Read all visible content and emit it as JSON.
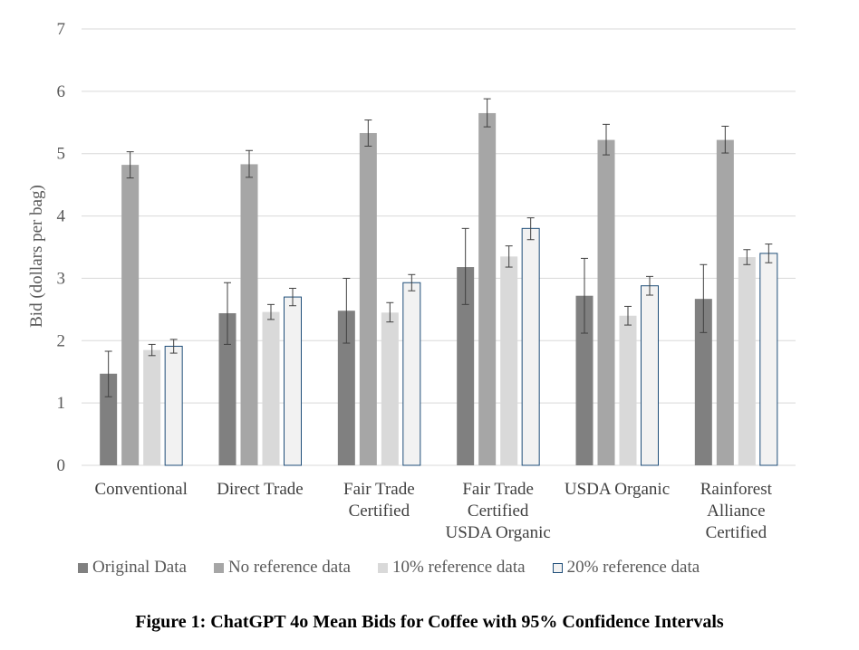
{
  "caption": "Figure 1: ChatGPT 4o Mean Bids for Coffee with 95% Confidence Intervals",
  "chart_data": {
    "type": "bar",
    "title": "",
    "xlabel": "",
    "ylabel": "Bid (dollars per bag)",
    "ylim": [
      0,
      7
    ],
    "yticks": [
      "0",
      "1",
      "2",
      "3",
      "4",
      "5",
      "6",
      "7"
    ],
    "grid": true,
    "legend_position": "bottom",
    "categories": [
      [
        "Conventional"
      ],
      [
        "Direct Trade"
      ],
      [
        "Fair Trade",
        "Certified"
      ],
      [
        "Fair Trade",
        "Certified",
        "USDA Organic"
      ],
      [
        "USDA Organic"
      ],
      [
        "Rainforest",
        "Alliance",
        "Certified"
      ]
    ],
    "series": [
      {
        "name": "Original Data",
        "color": "#808080",
        "stroke": "#808080",
        "values": [
          1.47,
          2.44,
          2.48,
          3.18,
          2.72,
          2.67
        ],
        "ci_low": [
          1.1,
          1.94,
          1.96,
          2.58,
          2.12,
          2.13
        ],
        "ci_high": [
          1.83,
          2.93,
          3.0,
          3.8,
          3.32,
          3.22
        ]
      },
      {
        "name": "No reference data",
        "color": "#a6a6a6",
        "stroke": "#a6a6a6",
        "values": [
          4.82,
          4.83,
          5.33,
          5.65,
          5.22,
          5.22
        ],
        "ci_low": [
          4.61,
          4.62,
          5.12,
          5.43,
          4.98,
          5.01
        ],
        "ci_high": [
          5.03,
          5.05,
          5.54,
          5.88,
          5.47,
          5.44
        ]
      },
      {
        "name": "10% reference data",
        "color": "#d9d9d9",
        "stroke": "#d9d9d9",
        "values": [
          1.85,
          2.46,
          2.45,
          3.35,
          2.4,
          3.34
        ],
        "ci_low": [
          1.76,
          2.34,
          2.3,
          3.18,
          2.25,
          3.22
        ],
        "ci_high": [
          1.94,
          2.58,
          2.61,
          3.52,
          2.55,
          3.46
        ]
      },
      {
        "name": "20% reference data",
        "color": "#f2f2f2",
        "stroke": "#1f4e79",
        "values": [
          1.91,
          2.7,
          2.93,
          3.8,
          2.88,
          3.4
        ],
        "ci_low": [
          1.8,
          2.56,
          2.8,
          3.62,
          2.73,
          3.25
        ],
        "ci_high": [
          2.02,
          2.84,
          3.06,
          3.97,
          3.03,
          3.55
        ]
      }
    ]
  }
}
